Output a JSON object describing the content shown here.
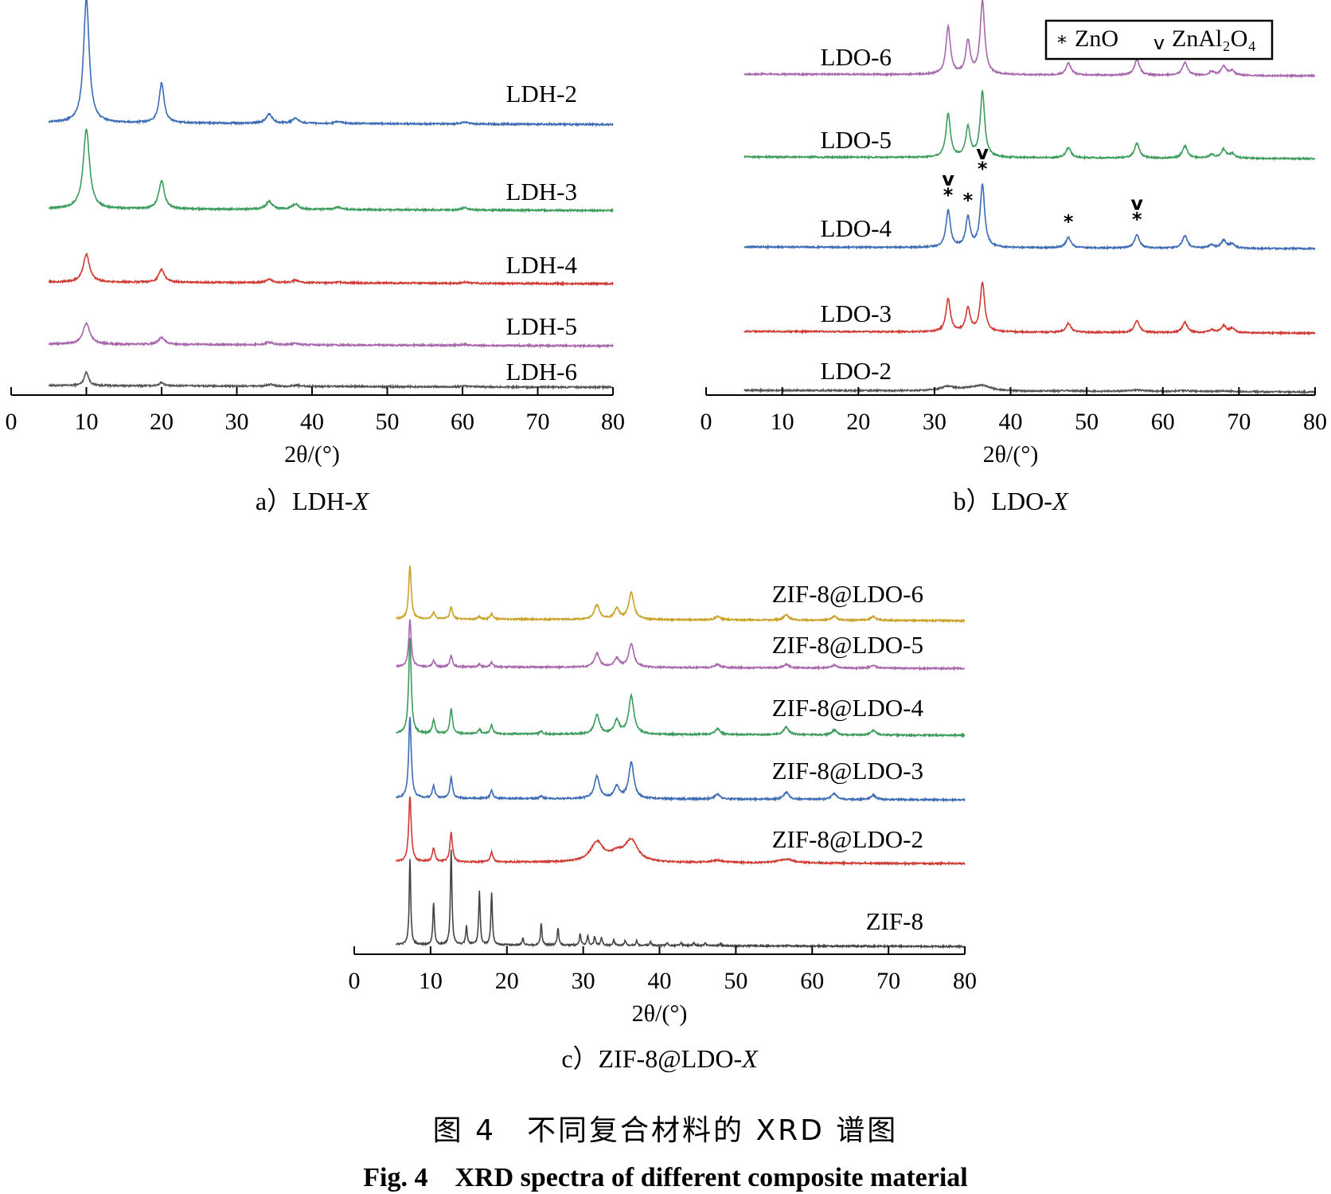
{
  "figure": {
    "caption_cn": "图 4　不同复合材料的 XRD 谱图",
    "caption_en": "Fig. 4　XRD spectra of different composite material"
  },
  "chart_data": [
    {
      "id": "a",
      "type": "line",
      "panel_label": "a）LDH-",
      "panel_label_italic": "X",
      "xlabel": "2θ/(°)",
      "xlim": [
        0,
        80
      ],
      "xticks": [
        0,
        10,
        20,
        30,
        40,
        50,
        60,
        70,
        80
      ],
      "x_start": 5,
      "grid": false,
      "series": [
        {
          "name": "LDH-6",
          "color": "#555555",
          "rel_intensity": 0.25,
          "peaks": [
            [
              10.0,
              55,
              0.35
            ],
            [
              20.0,
              14,
              0.35
            ],
            [
              23.5,
              3,
              0.3
            ],
            [
              34.5,
              7,
              0.5
            ],
            [
              38.0,
              4,
              0.5
            ],
            [
              60.3,
              4,
              0.4
            ]
          ]
        },
        {
          "name": "LDH-5",
          "color": "#a867ad",
          "rel_intensity": 0.35,
          "peaks": [
            [
              10.0,
              60,
              0.55
            ],
            [
              20.0,
              20,
              0.5
            ],
            [
              34.3,
              7,
              0.6
            ],
            [
              37.8,
              4,
              0.6
            ],
            [
              60.3,
              3,
              0.5
            ]
          ]
        },
        {
          "name": "LDH-4",
          "color": "#cf3a32",
          "rel_intensity": 0.4,
          "peaks": [
            [
              10.0,
              70,
              0.5
            ],
            [
              20.0,
              32,
              0.45
            ],
            [
              34.3,
              9,
              0.5
            ],
            [
              37.8,
              6,
              0.5
            ],
            [
              43.5,
              2,
              0.6
            ],
            [
              60.3,
              3,
              0.5
            ]
          ]
        },
        {
          "name": "LDH-3",
          "color": "#3b9c5b",
          "rel_intensity": 0.8,
          "peaks": [
            [
              10.0,
              100,
              0.5
            ],
            [
              20.0,
              35,
              0.45
            ],
            [
              34.3,
              10,
              0.5
            ],
            [
              37.8,
              7,
              0.5
            ],
            [
              43.5,
              3,
              0.6
            ],
            [
              60.3,
              3,
              0.5
            ]
          ]
        },
        {
          "name": "LDH-2",
          "color": "#3c6bb5",
          "rel_intensity": 1.0,
          "peaks": [
            [
              10.0,
              125,
              0.45
            ],
            [
              20.0,
              40,
              0.4
            ],
            [
              34.3,
              9,
              0.5
            ],
            [
              37.8,
              5,
              0.5
            ],
            [
              43.5,
              2,
              0.6
            ],
            [
              60.3,
              2,
              0.5
            ]
          ]
        }
      ]
    },
    {
      "id": "b",
      "type": "line",
      "panel_label": "b）LDO-",
      "panel_label_italic": "X",
      "xlabel": "2θ/(°)",
      "xlim": [
        0,
        80
      ],
      "xticks": [
        0,
        10,
        20,
        30,
        40,
        50,
        60,
        70,
        80
      ],
      "x_start": 5,
      "grid": false,
      "legend": {
        "position": "top-right",
        "entries": [
          {
            "marker": "*",
            "label": "ZnO"
          },
          {
            "marker": "v",
            "label": "ZnAl₂O₄"
          }
        ]
      },
      "annotations": [
        {
          "x": 31.8,
          "marks": "v*"
        },
        {
          "x": 34.4,
          "marks": "*"
        },
        {
          "x": 36.3,
          "marks": "v*"
        },
        {
          "x": 47.6,
          "marks": "*"
        },
        {
          "x": 56.6,
          "marks": "v*"
        }
      ],
      "series": [
        {
          "name": "LDO-2",
          "color": "#555555",
          "rel_intensity": 0.25,
          "peaks": [
            [
              31.8,
              18,
              1.2
            ],
            [
              34.4,
              8,
              1.2
            ],
            [
              36.3,
              22,
              1.3
            ],
            [
              47.6,
              3,
              1.2
            ],
            [
              56.6,
              6,
              1.4
            ],
            [
              62.9,
              4,
              1.4
            ],
            [
              68.0,
              3,
              1.5
            ]
          ]
        },
        {
          "name": "LDO-3",
          "color": "#cf3a32",
          "rel_intensity": 0.75,
          "peaks": [
            [
              31.8,
              48,
              0.35
            ],
            [
              34.4,
              34,
              0.35
            ],
            [
              36.3,
              72,
              0.35
            ],
            [
              47.6,
              13,
              0.4
            ],
            [
              56.6,
              17,
              0.4
            ],
            [
              62.9,
              15,
              0.4
            ],
            [
              66.4,
              4,
              0.4
            ],
            [
              68.0,
              10,
              0.4
            ],
            [
              69.1,
              6,
              0.4
            ]
          ]
        },
        {
          "name": "LDO-4",
          "color": "#3c6bb5",
          "rel_intensity": 0.95,
          "peaks": [
            [
              31.8,
              42,
              0.35
            ],
            [
              34.4,
              34,
              0.35
            ],
            [
              36.3,
              72,
              0.35
            ],
            [
              47.6,
              12,
              0.4
            ],
            [
              56.6,
              15,
              0.4
            ],
            [
              62.9,
              14,
              0.4
            ],
            [
              66.4,
              4,
              0.4
            ],
            [
              68.0,
              9,
              0.4
            ],
            [
              69.1,
              5,
              0.4
            ]
          ]
        },
        {
          "name": "LDO-5",
          "color": "#3b9c5b",
          "rel_intensity": 0.95,
          "peaks": [
            [
              31.8,
              50,
              0.35
            ],
            [
              34.4,
              34,
              0.35
            ],
            [
              36.3,
              75,
              0.35
            ],
            [
              47.6,
              12,
              0.4
            ],
            [
              56.6,
              17,
              0.4
            ],
            [
              62.9,
              14,
              0.4
            ],
            [
              66.4,
              4,
              0.4
            ],
            [
              68.0,
              10,
              0.4
            ],
            [
              69.1,
              5,
              0.4
            ]
          ]
        },
        {
          "name": "LDO-6",
          "color": "#a867ad",
          "rel_intensity": 1.0,
          "peaks": [
            [
              31.8,
              52,
              0.35
            ],
            [
              34.4,
              36,
              0.35
            ],
            [
              36.3,
              80,
              0.35
            ],
            [
              47.6,
              13,
              0.4
            ],
            [
              56.6,
              17,
              0.4
            ],
            [
              62.9,
              14,
              0.4
            ],
            [
              66.4,
              4,
              0.4
            ],
            [
              68.0,
              10,
              0.4
            ],
            [
              69.1,
              5,
              0.4
            ]
          ]
        }
      ]
    },
    {
      "id": "c",
      "type": "line",
      "panel_label": "c）ZIF-8@LDO-",
      "panel_label_italic": "X",
      "xlabel": "2θ/(°)",
      "xlim": [
        0,
        80
      ],
      "xticks": [
        0,
        10,
        20,
        30,
        40,
        50,
        60,
        70,
        80
      ],
      "x_start": 5.5,
      "grid": false,
      "series": [
        {
          "name": "ZIF-8",
          "color": "#444444",
          "rel_intensity": 1.0,
          "peaks": [
            [
              7.3,
              90,
              0.12
            ],
            [
              10.4,
              44,
              0.12
            ],
            [
              12.7,
              100,
              0.12
            ],
            [
              14.7,
              20,
              0.12
            ],
            [
              16.4,
              56,
              0.12
            ],
            [
              18.0,
              54,
              0.12
            ],
            [
              22.1,
              7,
              0.12
            ],
            [
              24.5,
              22,
              0.12
            ],
            [
              26.7,
              18,
              0.12
            ],
            [
              29.6,
              12,
              0.12
            ],
            [
              30.6,
              10,
              0.12
            ],
            [
              31.5,
              9,
              0.12
            ],
            [
              32.4,
              8,
              0.12
            ],
            [
              34.0,
              6,
              0.12
            ],
            [
              35.5,
              5,
              0.12
            ],
            [
              37.0,
              5,
              0.12
            ],
            [
              38.8,
              4,
              0.12
            ],
            [
              41.0,
              3,
              0.12
            ],
            [
              42.8,
              3,
              0.12
            ],
            [
              44.5,
              3,
              0.12
            ],
            [
              46.0,
              3,
              0.12
            ],
            [
              48.0,
              2,
              0.12
            ]
          ]
        },
        {
          "name": "ZIF-8@LDO-2",
          "color": "#cf3a32",
          "rel_intensity": 0.8,
          "peaks": [
            [
              7.3,
              85,
              0.2
            ],
            [
              10.4,
              18,
              0.2
            ],
            [
              12.7,
              38,
              0.2
            ],
            [
              18.0,
              13,
              0.2
            ],
            [
              31.8,
              26,
              1.0
            ],
            [
              34.4,
              10,
              1.0
            ],
            [
              36.3,
              28,
              1.0
            ],
            [
              47.6,
              3,
              1.0
            ],
            [
              56.6,
              5,
              1.2
            ]
          ]
        },
        {
          "name": "ZIF-8@LDO-3",
          "color": "#3c6bb5",
          "rel_intensity": 0.9,
          "peaks": [
            [
              7.3,
              95,
              0.2
            ],
            [
              10.4,
              14,
              0.2
            ],
            [
              12.7,
              24,
              0.2
            ],
            [
              18.0,
              9,
              0.2
            ],
            [
              24.5,
              3,
              0.2
            ],
            [
              31.8,
              26,
              0.4
            ],
            [
              34.4,
              14,
              0.4
            ],
            [
              36.3,
              42,
              0.4
            ],
            [
              47.6,
              6,
              0.4
            ],
            [
              56.6,
              8,
              0.4
            ],
            [
              62.9,
              7,
              0.4
            ],
            [
              68.0,
              5,
              0.4
            ]
          ]
        },
        {
          "name": "ZIF-8@LDO-4",
          "color": "#3b9c5b",
          "rel_intensity": 1.0,
          "peaks": [
            [
              7.3,
              100,
              0.2
            ],
            [
              10.4,
              14,
              0.2
            ],
            [
              12.7,
              26,
              0.2
            ],
            [
              16.4,
              5,
              0.2
            ],
            [
              18.0,
              9,
              0.2
            ],
            [
              24.5,
              3,
              0.2
            ],
            [
              31.8,
              20,
              0.4
            ],
            [
              34.4,
              14,
              0.4
            ],
            [
              36.3,
              40,
              0.4
            ],
            [
              47.6,
              6,
              0.4
            ],
            [
              56.6,
              8,
              0.4
            ],
            [
              62.9,
              5,
              0.4
            ],
            [
              68.0,
              5,
              0.4
            ]
          ]
        },
        {
          "name": "ZIF-8@LDO-5",
          "color": "#a867ad",
          "rel_intensity": 0.65,
          "peaks": [
            [
              7.3,
              75,
              0.2
            ],
            [
              10.4,
              10,
              0.2
            ],
            [
              12.7,
              18,
              0.2
            ],
            [
              16.4,
              4,
              0.2
            ],
            [
              18.0,
              7,
              0.2
            ],
            [
              31.8,
              22,
              0.4
            ],
            [
              34.4,
              14,
              0.4
            ],
            [
              36.3,
              38,
              0.4
            ],
            [
              47.6,
              5,
              0.4
            ],
            [
              56.6,
              6,
              0.4
            ],
            [
              62.9,
              5,
              0.4
            ],
            [
              68.0,
              5,
              0.4
            ]
          ]
        },
        {
          "name": "ZIF-8@LDO-6",
          "color": "#c9a227",
          "rel_intensity": 0.7,
          "peaks": [
            [
              7.3,
              80,
              0.2
            ],
            [
              10.4,
              10,
              0.2
            ],
            [
              12.7,
              18,
              0.2
            ],
            [
              16.4,
              4,
              0.2
            ],
            [
              18.0,
              8,
              0.2
            ],
            [
              31.8,
              22,
              0.4
            ],
            [
              34.4,
              16,
              0.4
            ],
            [
              36.3,
              40,
              0.4
            ],
            [
              47.6,
              5,
              0.4
            ],
            [
              56.6,
              8,
              0.4
            ],
            [
              62.9,
              6,
              0.4
            ],
            [
              68.0,
              6,
              0.4
            ]
          ]
        }
      ]
    }
  ]
}
